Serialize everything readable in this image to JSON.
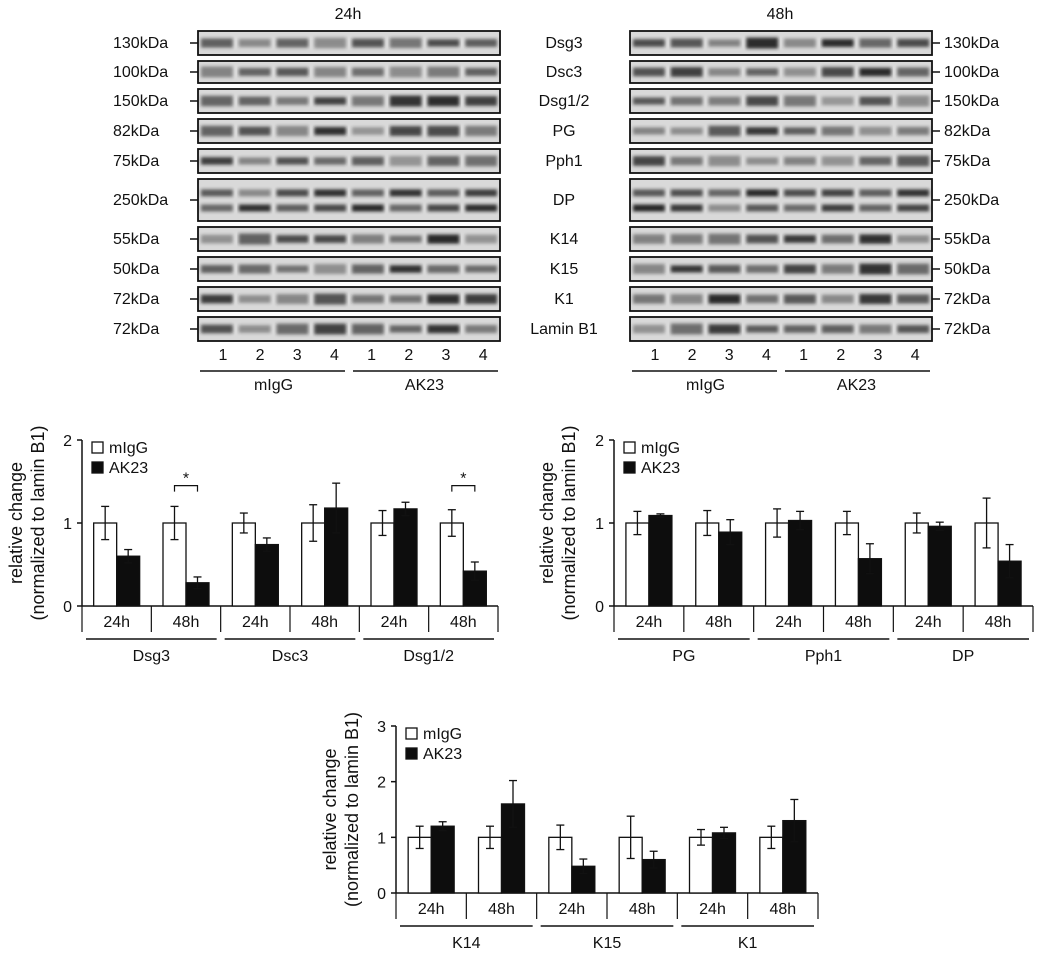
{
  "blot": {
    "left_title": "24h",
    "right_title": "48h",
    "rows": [
      {
        "protein": "Dsg3",
        "kda_left": "130kDa",
        "kda_right": "130kDa",
        "h": 24
      },
      {
        "protein": "Dsc3",
        "kda_left": "100kDa",
        "kda_right": "100kDa",
        "h": 22
      },
      {
        "protein": "Dsg1/2",
        "kda_left": "150kDa",
        "kda_right": "150kDa",
        "h": 24
      },
      {
        "protein": "PG",
        "kda_left": "82kDa",
        "kda_right": "82kDa",
        "h": 24
      },
      {
        "protein": "Pph1",
        "kda_left": "75kDa",
        "kda_right": "75kDa",
        "h": 24
      },
      {
        "protein": "DP",
        "kda_left": "250kDa",
        "kda_right": "250kDa",
        "h": 42
      },
      {
        "protein": "K14",
        "kda_left": "55kDa",
        "kda_right": "55kDa",
        "h": 24
      },
      {
        "protein": "K15",
        "kda_left": "50kDa",
        "kda_right": "50kDa",
        "h": 24
      },
      {
        "protein": "K1",
        "kda_left": "72kDa",
        "kda_right": "72kDa",
        "h": 24
      },
      {
        "protein": "Lamin B1",
        "kda_left": "72kDa",
        "kda_right": "72kDa",
        "h": 24
      }
    ],
    "lane_numbers": [
      "1",
      "2",
      "3",
      "4",
      "1",
      "2",
      "3",
      "4"
    ],
    "groups": [
      "mIgG",
      "AK23"
    ]
  },
  "chart_data": [
    {
      "type": "bar",
      "ylabel_line1": "relative change",
      "ylabel_line2": "(normalized to lamin B1)",
      "ylim": [
        0,
        2
      ],
      "yticks": [
        "0",
        "1",
        "2"
      ],
      "legend": [
        "mIgG",
        "AK23"
      ],
      "proteins": [
        "Dsg3",
        "Dsc3",
        "Dsg1/2"
      ],
      "timepoints": [
        "24h",
        "48h",
        "24h",
        "48h",
        "24h",
        "48h"
      ],
      "series": [
        {
          "name": "mIgG",
          "values": [
            1.0,
            1.0,
            1.0,
            1.0,
            1.0,
            1.0
          ],
          "errors": [
            0.2,
            0.2,
            0.12,
            0.22,
            0.15,
            0.16
          ]
        },
        {
          "name": "AK23",
          "values": [
            0.6,
            0.28,
            0.74,
            1.18,
            1.17,
            0.42
          ],
          "errors": [
            0.08,
            0.07,
            0.08,
            0.3,
            0.08,
            0.11
          ]
        }
      ],
      "significance": [
        {
          "index": 1,
          "text": "*"
        },
        {
          "index": 5,
          "text": "*"
        }
      ]
    },
    {
      "type": "bar",
      "ylabel_line1": "relative change",
      "ylabel_line2": "(normalized to lamin B1)",
      "ylim": [
        0,
        2
      ],
      "yticks": [
        "0",
        "1",
        "2"
      ],
      "legend": [
        "mIgG",
        "AK23"
      ],
      "proteins": [
        "PG",
        "Pph1",
        "DP"
      ],
      "timepoints": [
        "24h",
        "48h",
        "24h",
        "48h",
        "24h",
        "48h"
      ],
      "series": [
        {
          "name": "mIgG",
          "values": [
            1.0,
            1.0,
            1.0,
            1.0,
            1.0,
            1.0
          ],
          "errors": [
            0.14,
            0.15,
            0.17,
            0.14,
            0.12,
            0.3
          ]
        },
        {
          "name": "AK23",
          "values": [
            1.09,
            0.89,
            1.03,
            0.57,
            0.96,
            0.54
          ],
          "errors": [
            0.02,
            0.15,
            0.11,
            0.18,
            0.05,
            0.2
          ]
        }
      ],
      "significance": []
    },
    {
      "type": "bar",
      "ylabel_line1": "relative change",
      "ylabel_line2": "(normalized to lamin B1)",
      "ylim": [
        0,
        3
      ],
      "yticks": [
        "0",
        "1",
        "2",
        "3"
      ],
      "legend": [
        "mIgG",
        "AK23"
      ],
      "proteins": [
        "K14",
        "K15",
        "K1"
      ],
      "timepoints": [
        "24h",
        "48h",
        "24h",
        "48h",
        "24h",
        "48h"
      ],
      "series": [
        {
          "name": "mIgG",
          "values": [
            1.0,
            1.0,
            1.0,
            1.0,
            1.0,
            1.0
          ],
          "errors": [
            0.2,
            0.2,
            0.22,
            0.38,
            0.14,
            0.2
          ]
        },
        {
          "name": "AK23",
          "values": [
            1.2,
            1.6,
            0.48,
            0.6,
            1.08,
            1.3
          ],
          "errors": [
            0.08,
            0.42,
            0.13,
            0.15,
            0.1,
            0.38
          ]
        }
      ],
      "significance": []
    }
  ]
}
